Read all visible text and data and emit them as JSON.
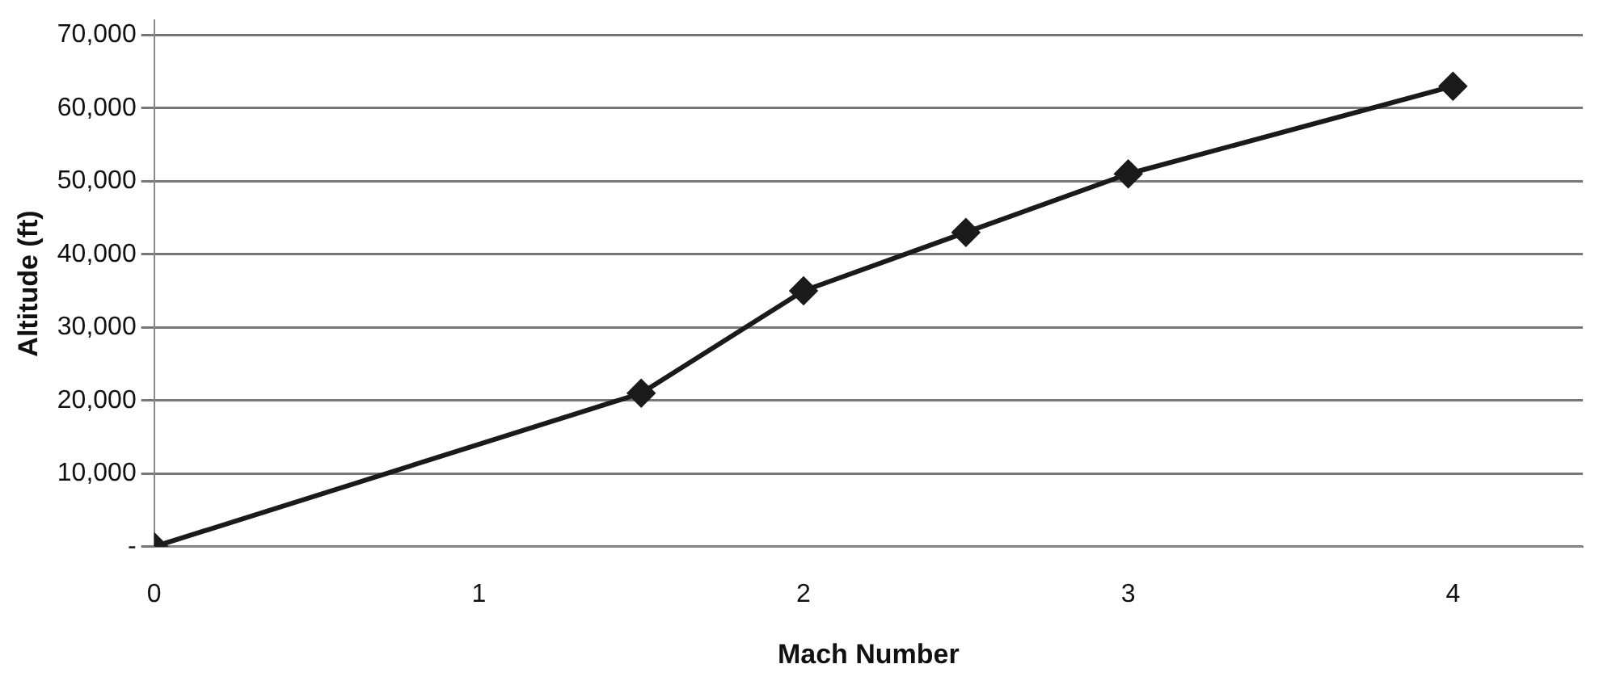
{
  "chart_data": {
    "type": "line",
    "xlabel": "Mach Number",
    "ylabel": "Altitude (ft)",
    "x": [
      0,
      1.5,
      2,
      2.5,
      3,
      4
    ],
    "series": [
      {
        "color": "#1a1a1a",
        "values": [
          0,
          21000,
          35000,
          43000,
          51000,
          63000
        ]
      }
    ],
    "xlim": [
      0,
      4.4
    ],
    "xticks": [
      0,
      1,
      2,
      3,
      4
    ],
    "ylim": [
      0,
      72000
    ],
    "yticks": [
      {
        "value": 0,
        "label": "-"
      },
      {
        "value": 10000,
        "label": "10,000"
      },
      {
        "value": 20000,
        "label": "20,000"
      },
      {
        "value": 30000,
        "label": "30,000"
      },
      {
        "value": 40000,
        "label": "40,000"
      },
      {
        "value": 50000,
        "label": "50,000"
      },
      {
        "value": 60000,
        "label": "60,000"
      },
      {
        "value": 70000,
        "label": "70,000"
      }
    ],
    "grid": "y",
    "legend": false,
    "marker": "diamond",
    "line_style": "solid"
  }
}
